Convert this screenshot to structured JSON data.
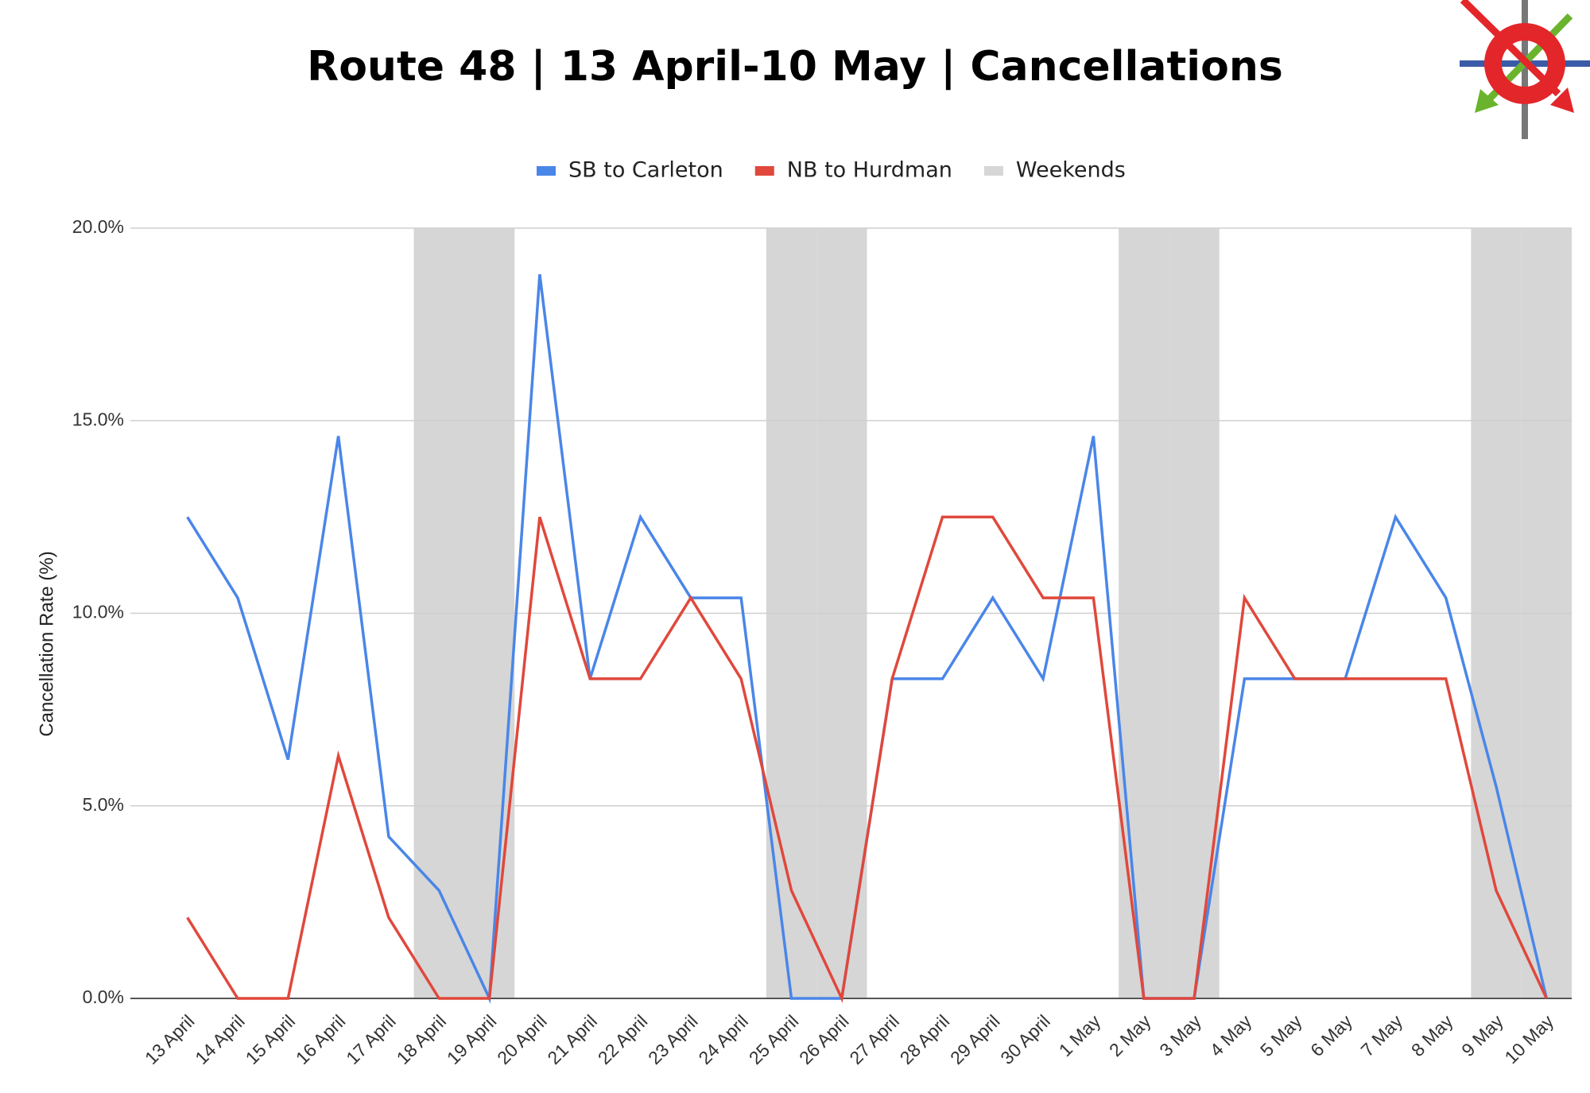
{
  "chart_data": {
    "type": "line",
    "title": "Route 48 | 13 April-10 May | Cancellations",
    "y_label": "Cancellation Rate (%)",
    "categories": [
      "13 April",
      "14 April",
      "15 April",
      "16 April",
      "17 April",
      "18 April",
      "19 April",
      "20 April",
      "21 April",
      "22 April",
      "23 April",
      "24 April",
      "25 April",
      "26 April",
      "27 April",
      "28 April",
      "29 April",
      "30 April",
      "1 May",
      "2 May",
      "3 May",
      "4 May",
      "5 May",
      "6 May",
      "7 May",
      "8 May",
      "9 May",
      "10 May"
    ],
    "series": [
      {
        "name": "SB to Carleton",
        "color": "#4a86e8",
        "type": "line",
        "values": [
          12.5,
          10.4,
          6.2,
          14.6,
          4.2,
          2.8,
          0,
          18.8,
          8.3,
          12.5,
          10.4,
          10.4,
          0,
          0,
          8.3,
          8.3,
          10.4,
          8.3,
          14.6,
          0,
          0,
          8.3,
          8.3,
          8.3,
          12.5,
          10.4,
          5.5,
          0
        ]
      },
      {
        "name": "NB to Hurdman",
        "color": "#e0483c",
        "type": "line",
        "values": [
          2.1,
          0,
          0,
          6.3,
          2.1,
          0,
          0,
          12.5,
          8.3,
          8.3,
          10.4,
          8.3,
          2.8,
          0,
          8.3,
          12.5,
          12.5,
          10.4,
          10.4,
          0,
          0,
          10.4,
          8.3,
          8.3,
          8.3,
          8.3,
          2.8,
          0
        ]
      },
      {
        "name": "Weekends",
        "color": "#d6d6d6",
        "type": "bar",
        "values": [
          null,
          null,
          null,
          null,
          null,
          20,
          20,
          null,
          null,
          null,
          null,
          null,
          20,
          20,
          null,
          null,
          null,
          null,
          null,
          20,
          20,
          null,
          null,
          null,
          null,
          null,
          20,
          20
        ]
      }
    ],
    "ylim": [
      0,
      20
    ],
    "yticks": [
      {
        "value": 0,
        "label": "0.0%"
      },
      {
        "value": 5,
        "label": "5.0%"
      },
      {
        "value": 10,
        "label": "10.0%"
      },
      {
        "value": 15,
        "label": "15.0%"
      },
      {
        "value": 20,
        "label": "20.0%"
      }
    ],
    "grid": true,
    "legend": "top"
  }
}
